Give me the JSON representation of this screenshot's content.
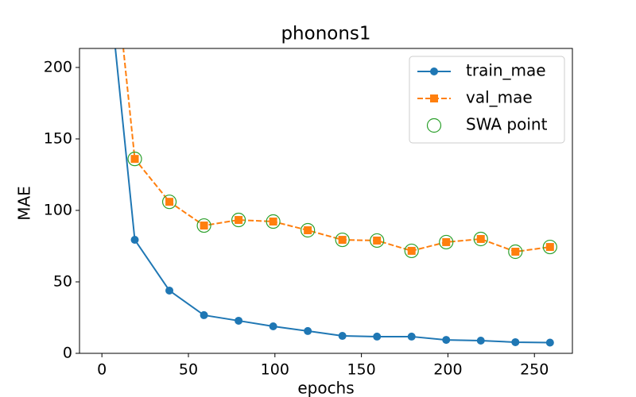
{
  "chart_data": {
    "type": "line",
    "title": "phonons1",
    "x_label": "epochs",
    "y_label": "MAE",
    "xlim": [
      -12.95,
      271.95
    ],
    "ylim": [
      0,
      213.3
    ],
    "xticks": [
      0,
      50,
      100,
      150,
      200,
      250
    ],
    "yticks": [
      0,
      50,
      100,
      150,
      200
    ],
    "legend": "upper right",
    "series": [
      {
        "name": "train_mae",
        "color": "#1f77b4",
        "linestyle": "solid",
        "marker": "circle",
        "marker_fill": "filled",
        "x": [
          0,
          19,
          39,
          59,
          79,
          99,
          119,
          139,
          159,
          179,
          199,
          219,
          239,
          259
        ],
        "values": [
          306,
          79.4,
          43.9,
          26.7,
          22.8,
          18.9,
          15.6,
          12.2,
          11.7,
          11.7,
          9.4,
          8.9,
          7.8,
          7.5
        ]
      },
      {
        "name": "val_mae",
        "color": "#ff7f0e",
        "linestyle": "dashed",
        "marker": "square",
        "marker_fill": "filled",
        "x": [
          0,
          19,
          39,
          59,
          79,
          99,
          119,
          139,
          159,
          179,
          199,
          219,
          239,
          259
        ],
        "values": [
          358,
          136,
          106,
          89.4,
          93.3,
          92.2,
          86.1,
          79.4,
          78.9,
          71.7,
          77.8,
          80,
          71.1,
          74.4
        ]
      },
      {
        "name": "SWA point",
        "color": "#2ca02c",
        "linestyle": "none",
        "marker": "circle",
        "marker_fill": "open",
        "x": [
          19,
          39,
          59,
          79,
          99,
          119,
          139,
          159,
          179,
          199,
          219,
          239,
          259
        ],
        "values": [
          136,
          106,
          89.4,
          93.3,
          92.2,
          86.1,
          79.4,
          78.9,
          71.7,
          77.8,
          80,
          71.1,
          74.4
        ]
      }
    ]
  }
}
